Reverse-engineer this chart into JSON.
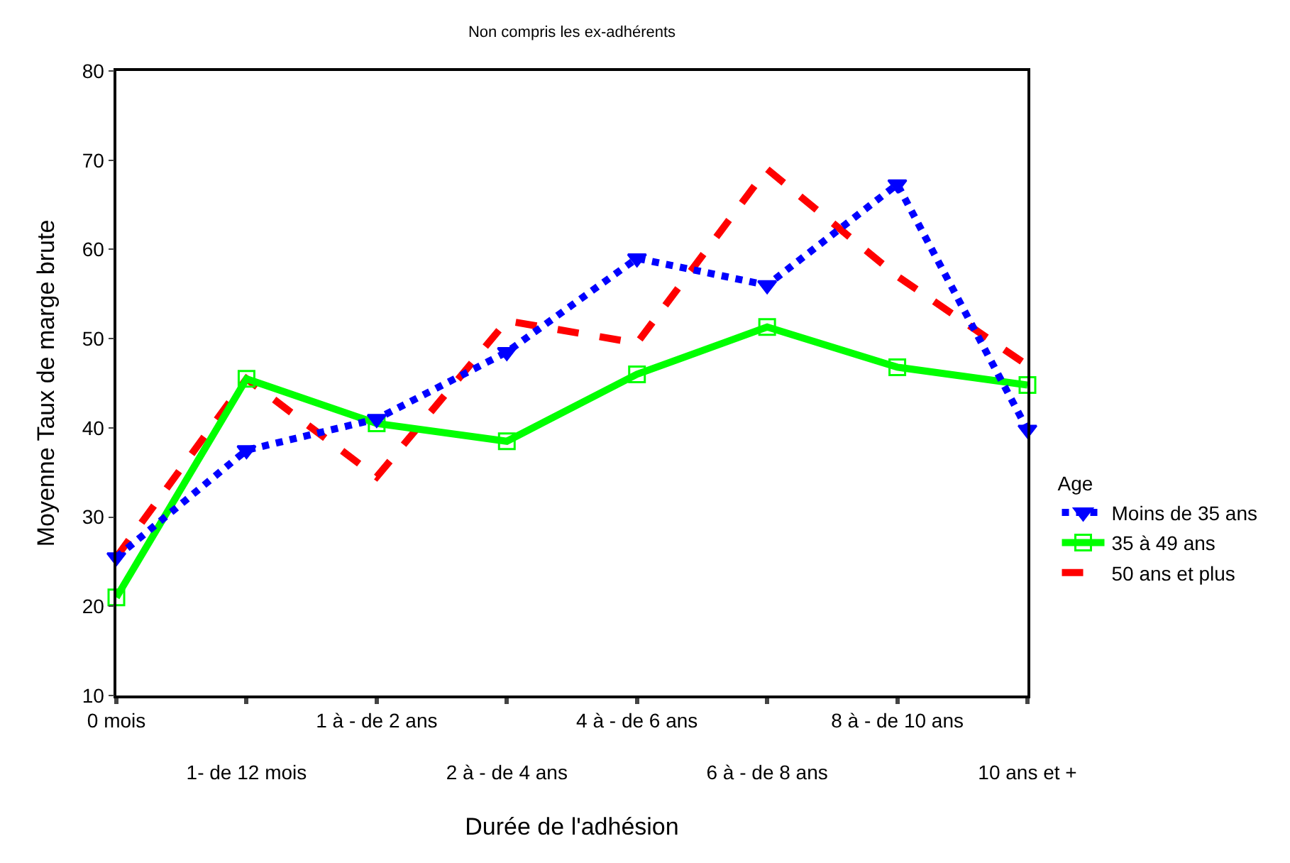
{
  "chart_data": {
    "type": "line",
    "title": "Non compris les ex-adhérents",
    "xlabel": "Durée de l'adhésion",
    "ylabel": "Moyenne Taux de marge brute",
    "legend_title": "Age",
    "categories": [
      "0 mois",
      "1- de 12 mois",
      "1 à - de 2 ans",
      "2 à - de 4 ans",
      "4 à - de 6 ans",
      "6 à - de 8 ans",
      "8 à - de 10 ans",
      "10 ans et +"
    ],
    "series": [
      {
        "name": "Moins de 35 ans",
        "color": "#0000ff",
        "marker": "triangle",
        "line_style": "dotted",
        "values": [
          25.5,
          37.5,
          41,
          48.5,
          59,
          56,
          67.3,
          39.8
        ]
      },
      {
        "name": "35 à 49 ans",
        "color": "#00ff00",
        "marker": "square",
        "line_style": "solid",
        "values": [
          21,
          45.5,
          40.5,
          38.5,
          46,
          51.3,
          46.8,
          44.8
        ]
      },
      {
        "name": "50 ans et plus",
        "color": "#ff0000",
        "marker": "none",
        "line_style": "dashed",
        "values": [
          25.5,
          45.5,
          34.5,
          52,
          49.5,
          69,
          57,
          47
        ]
      }
    ],
    "ylim": [
      10,
      80
    ],
    "yticks": [
      10,
      20,
      30,
      40,
      50,
      60,
      70,
      80
    ],
    "legend": "right"
  }
}
